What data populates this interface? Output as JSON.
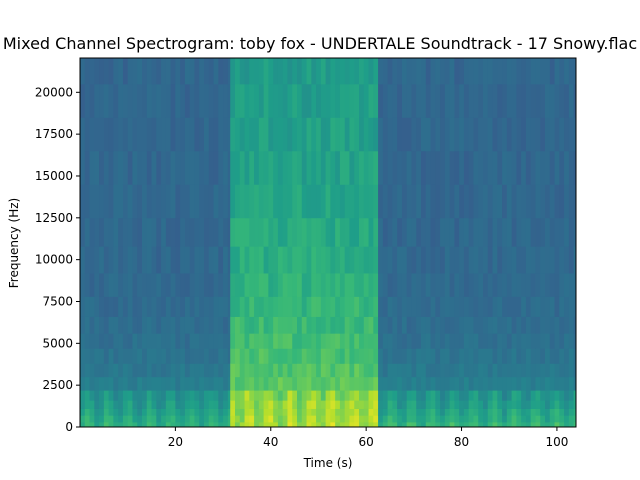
{
  "chart_data": {
    "type": "heatmap",
    "title": "Mixed Channel Spectrogram: toby fox - UNDERTALE Soundtrack - 17 Snowy.flac",
    "xlabel": "Time (s)",
    "ylabel": "Frequency (Hz)",
    "xlim": [
      0,
      104
    ],
    "ylim": [
      0,
      22050
    ],
    "x_ticks": [
      {
        "value": 20,
        "label": "20"
      },
      {
        "value": 40,
        "label": "40"
      },
      {
        "value": 60,
        "label": "60"
      },
      {
        "value": 80,
        "label": "80"
      },
      {
        "value": 100,
        "label": "100"
      }
    ],
    "y_ticks": [
      {
        "value": 0,
        "label": "0"
      },
      {
        "value": 2500,
        "label": "2500"
      },
      {
        "value": 5000,
        "label": "5000"
      },
      {
        "value": 7500,
        "label": "7500"
      },
      {
        "value": 10000,
        "label": "10000"
      },
      {
        "value": 12500,
        "label": "12500"
      },
      {
        "value": 15000,
        "label": "15000"
      },
      {
        "value": 17500,
        "label": "17500"
      },
      {
        "value": 20000,
        "label": "20000"
      }
    ],
    "colormap": "viridis",
    "grid": false,
    "regions": [
      {
        "t_start": 0,
        "t_end": 31.5,
        "level_top": 0.33,
        "level_low": 0.58
      },
      {
        "t_start": 31.5,
        "t_end": 62.5,
        "level_top": 0.52,
        "level_low": 0.82
      },
      {
        "t_start": 62.5,
        "t_end": 104,
        "level_top": 0.33,
        "level_low": 0.6
      }
    ]
  },
  "colors": {
    "background_dark": "#2b6f8a",
    "active_band": "#2a9a87",
    "peak": "#d8e219",
    "axes": "#000000"
  }
}
